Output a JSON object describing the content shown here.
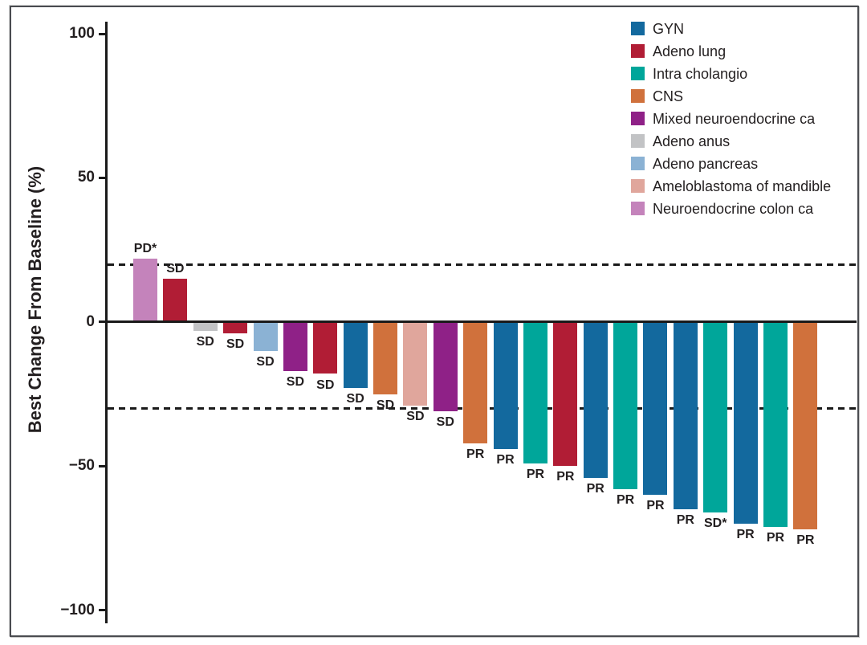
{
  "chart_data": {
    "type": "bar",
    "variant": "waterfall",
    "title": "",
    "xlabel": "",
    "ylabel": "Best Change From Baseline (%)",
    "ylim": [
      -100,
      100
    ],
    "yticks": [
      100,
      50,
      0,
      -50,
      -100
    ],
    "ytick_labels": [
      "100",
      "50",
      "0",
      "−50",
      "−100"
    ],
    "reference_lines": [
      20,
      -30
    ],
    "grid": false,
    "legend_position": "top-right",
    "legend": [
      {
        "label": "GYN",
        "color": "#13699e"
      },
      {
        "label": "Adeno lung",
        "color": "#b11d35"
      },
      {
        "label": "Intra cholangio",
        "color": "#00a69a"
      },
      {
        "label": "CNS",
        "color": "#d0713c"
      },
      {
        "label": "Mixed neuroendocrine ca",
        "color": "#8f2187"
      },
      {
        "label": "Adeno anus",
        "color": "#c2c3c5"
      },
      {
        "label": "Adeno pancreas",
        "color": "#8bb2d4"
      },
      {
        "label": "Ameloblastoma of mandible",
        "color": "#e0a69c"
      },
      {
        "label": "Neuroendocrine colon ca",
        "color": "#c483bb"
      }
    ],
    "bars": [
      {
        "value": 22,
        "category": "Neuroendocrine colon ca",
        "response": "PD*"
      },
      {
        "value": 15,
        "category": "Adeno lung",
        "response": "SD"
      },
      {
        "value": -3,
        "category": "Adeno anus",
        "response": "SD"
      },
      {
        "value": -4,
        "category": "Adeno lung",
        "response": "SD"
      },
      {
        "value": -10,
        "category": "Adeno pancreas",
        "response": "SD"
      },
      {
        "value": -17,
        "category": "Mixed neuroendocrine ca",
        "response": "SD"
      },
      {
        "value": -18,
        "category": "Adeno lung",
        "response": "SD"
      },
      {
        "value": -23,
        "category": "GYN",
        "response": "SD"
      },
      {
        "value": -25,
        "category": "CNS",
        "response": "SD"
      },
      {
        "value": -29,
        "category": "Ameloblastoma of mandible",
        "response": "SD"
      },
      {
        "value": -31,
        "category": "Mixed neuroendocrine ca",
        "response": "SD"
      },
      {
        "value": -42,
        "category": "CNS",
        "response": "PR"
      },
      {
        "value": -44,
        "category": "GYN",
        "response": "PR"
      },
      {
        "value": -49,
        "category": "Intra cholangio",
        "response": "PR"
      },
      {
        "value": -50,
        "category": "Adeno lung",
        "response": "PR"
      },
      {
        "value": -54,
        "category": "GYN",
        "response": "PR"
      },
      {
        "value": -58,
        "category": "Intra cholangio",
        "response": "PR"
      },
      {
        "value": -60,
        "category": "GYN",
        "response": "PR"
      },
      {
        "value": -65,
        "category": "GYN",
        "response": "PR"
      },
      {
        "value": -66,
        "category": "Intra cholangio",
        "response": "SD*"
      },
      {
        "value": -70,
        "category": "GYN",
        "response": "PR"
      },
      {
        "value": -71,
        "category": "Intra cholangio",
        "response": "PR"
      },
      {
        "value": -72,
        "category": "CNS",
        "response": "PR"
      }
    ]
  }
}
